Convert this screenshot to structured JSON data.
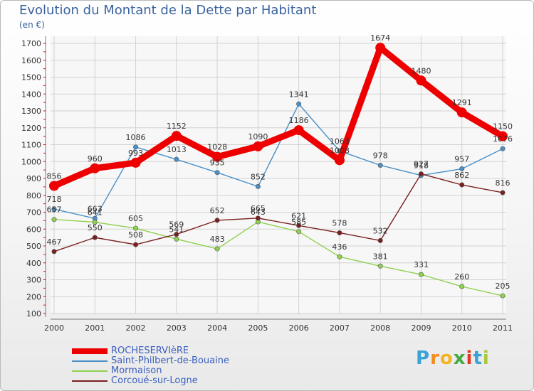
{
  "header": {
    "title": "Evolution du Montant de la Dette par Habitant",
    "unit": "(en €)"
  },
  "logo": {
    "letters": [
      "P",
      "r",
      "o",
      "x",
      "i",
      "t",
      "i"
    ],
    "colors": [
      "#3aa3d6",
      "#f28c1e",
      "#f2b51e",
      "#46a843",
      "#e03a2a",
      "#3aa3d6",
      "#a8c83a"
    ]
  },
  "chart_data": {
    "type": "line",
    "title": "Evolution du Montant de la Dette par Habitant",
    "ylabel": "(en €)",
    "categories": [
      "2000",
      "2001",
      "2002",
      "2003",
      "2004",
      "2005",
      "2006",
      "2007",
      "2008",
      "2009",
      "2010",
      "2011"
    ],
    "yticks": [
      100,
      200,
      300,
      400,
      500,
      600,
      700,
      800,
      900,
      1000,
      1100,
      1200,
      1300,
      1400,
      1500,
      1600,
      1700
    ],
    "ylim": [
      100,
      1700
    ],
    "grid": true,
    "legend": "bottom-left",
    "series": [
      {
        "name": "ROCHESERVIèRE",
        "color": "#ee0000",
        "emphasis": true,
        "values": [
          856,
          960,
          993,
          1152,
          1028,
          1090,
          1186,
          1008,
          1674,
          1480,
          1291,
          1150
        ],
        "labels": [
          "856",
          "960",
          "993",
          "1152",
          "1028",
          "1090",
          "1186",
          "1008",
          "1674",
          "1480",
          "1291",
          "1150"
        ]
      },
      {
        "name": "Saint-Philbert-de-Bouaine",
        "color": "#4a90c8",
        "emphasis": false,
        "values": [
          718,
          663,
          1086,
          1013,
          935,
          852,
          1341,
          1063,
          978,
          918,
          957,
          1076
        ],
        "labels": [
          "718",
          "663",
          "1086",
          "1013",
          "935",
          "852",
          "1341",
          "1063",
          "978",
          "918",
          "957",
          "1076"
        ]
      },
      {
        "name": "Mormaison",
        "color": "#8fd14f",
        "emphasis": false,
        "values": [
          657,
          641,
          605,
          541,
          483,
          643,
          585,
          436,
          381,
          331,
          260,
          205
        ],
        "labels": [
          "657",
          "641",
          "605",
          "541",
          "483",
          "643",
          "585",
          "436",
          "381",
          "331",
          "260",
          "205"
        ]
      },
      {
        "name": "Corcoué-sur-Logne",
        "color": "#7a1f1f",
        "emphasis": false,
        "values": [
          467,
          550,
          508,
          569,
          652,
          665,
          621,
          578,
          532,
          927,
          862,
          816
        ],
        "labels": [
          "467",
          "550",
          "508",
          "569",
          "652",
          "665",
          "621",
          "578",
          "532",
          "927",
          "862",
          "816"
        ]
      }
    ]
  }
}
